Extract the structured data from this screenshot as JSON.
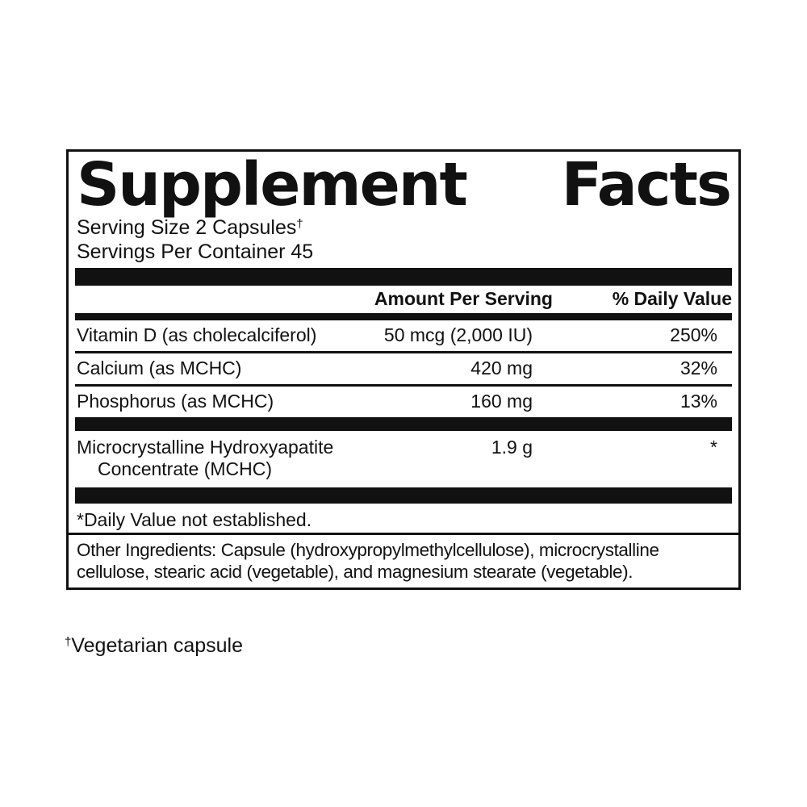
{
  "colors": {
    "text": "#111111",
    "background": "#ffffff",
    "bars": "#111111"
  },
  "panel": {
    "title": {
      "word1": "Supplement",
      "word2": "Facts"
    },
    "serving_size": {
      "text": "Serving Size 2 Capsules",
      "dagger": "†"
    },
    "servings_per_container": "Servings Per Container 45",
    "columns": {
      "amount": "Amount Per Serving",
      "daily_value": "% Daily Value"
    },
    "rows": [
      {
        "name": "Vitamin D (as cholecalciferol)",
        "amount": "50 mcg (2,000 IU)",
        "dv": "250%"
      },
      {
        "name": "Calcium (as MCHC)",
        "amount": "420 mg",
        "dv": "32%"
      },
      {
        "name": "Phosphorus (as MCHC)",
        "amount": "160 mg",
        "dv": "13%"
      }
    ],
    "mchc_row": {
      "name_line1": "Microcrystalline Hydroxyapatite",
      "name_line2": "Concentrate (MCHC)",
      "amount": "1.9 g",
      "dv": "*"
    },
    "footnote": "*Daily Value not established."
  },
  "other_ingredients": {
    "line1": "Other Ingredients: Capsule (hydroxypropylmethylcellulose), microcrystalline",
    "line2": "cellulose, stearic acid (vegetable), and magnesium stearate (vegetable)."
  },
  "bottom_note": {
    "dagger": "†",
    "text": "Vegetarian capsule"
  }
}
